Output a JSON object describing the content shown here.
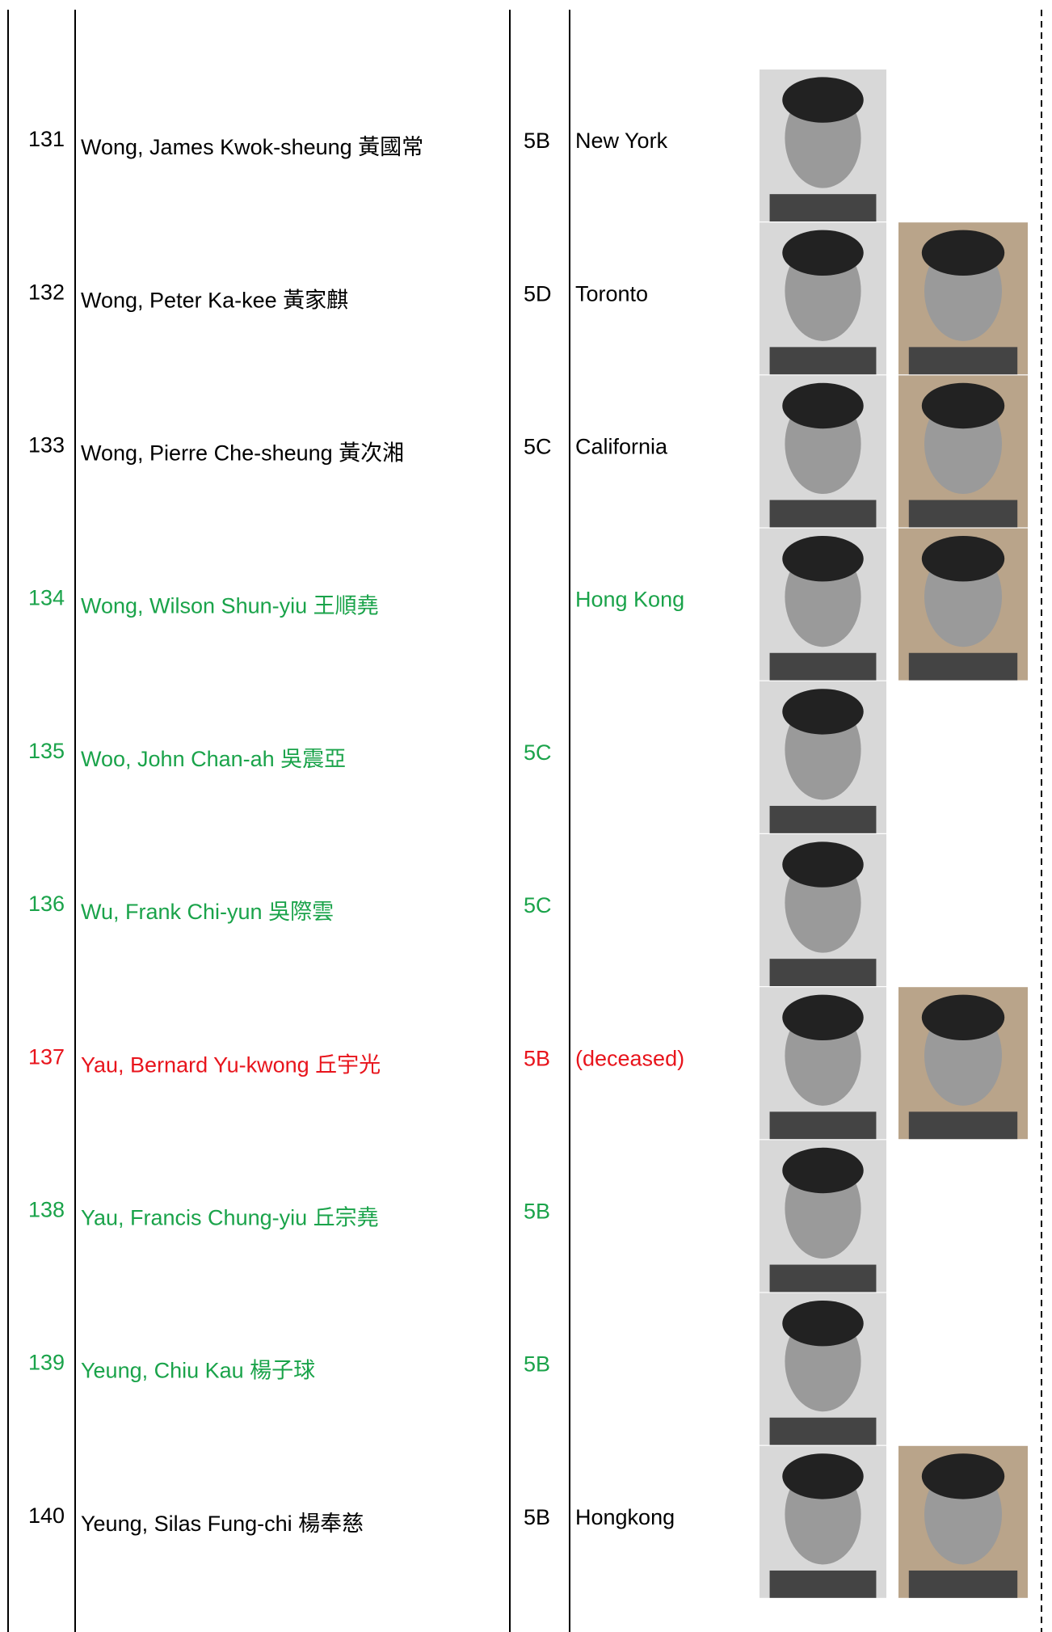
{
  "table": {
    "rows": [
      {
        "number": "131",
        "name": "Wong, James Kwok-sheung 黃國常",
        "class": "5B",
        "location": "New York",
        "color": "#000000"
      },
      {
        "number": "132",
        "name": "Wong, Peter Ka-kee 黃家麒",
        "class": "5D",
        "location": "Toronto",
        "color": "#000000"
      },
      {
        "number": "133",
        "name": "Wong, Pierre Che-sheung 黃次湘",
        "class": "5C",
        "location": "California",
        "color": "#000000"
      },
      {
        "number": "134",
        "name": "Wong, Wilson Shun-yiu 王順堯",
        "location": "Hong Kong",
        "color": "#1aa34a"
      },
      {
        "number": "135",
        "name": "Woo, John Chan-ah 吳震亞",
        "class": "5C",
        "color": "#1aa34a"
      },
      {
        "number": "136",
        "name": "Wu, Frank Chi-yun 吳際雲",
        "class": "5C",
        "color": "#1aa34a"
      },
      {
        "number": "137",
        "name": "Yau, Bernard Yu-kwong 丘宇光",
        "class": "5B",
        "location": "(deceased)",
        "color": "#e8141c"
      },
      {
        "number": "138",
        "name": "Yau, Francis Chung-yiu 丘宗堯",
        "class": "5B",
        "color": "#1aa34a"
      },
      {
        "number": "139",
        "name": "Yeung, Chiu Kau 楊子球",
        "class": "5B",
        "color": "#1aa34a"
      },
      {
        "number": "140",
        "name": "Yeung, Silas Fung-chi 楊奉慈",
        "class": "5B",
        "location": "Hongkong",
        "color": "#000000"
      }
    ]
  }
}
